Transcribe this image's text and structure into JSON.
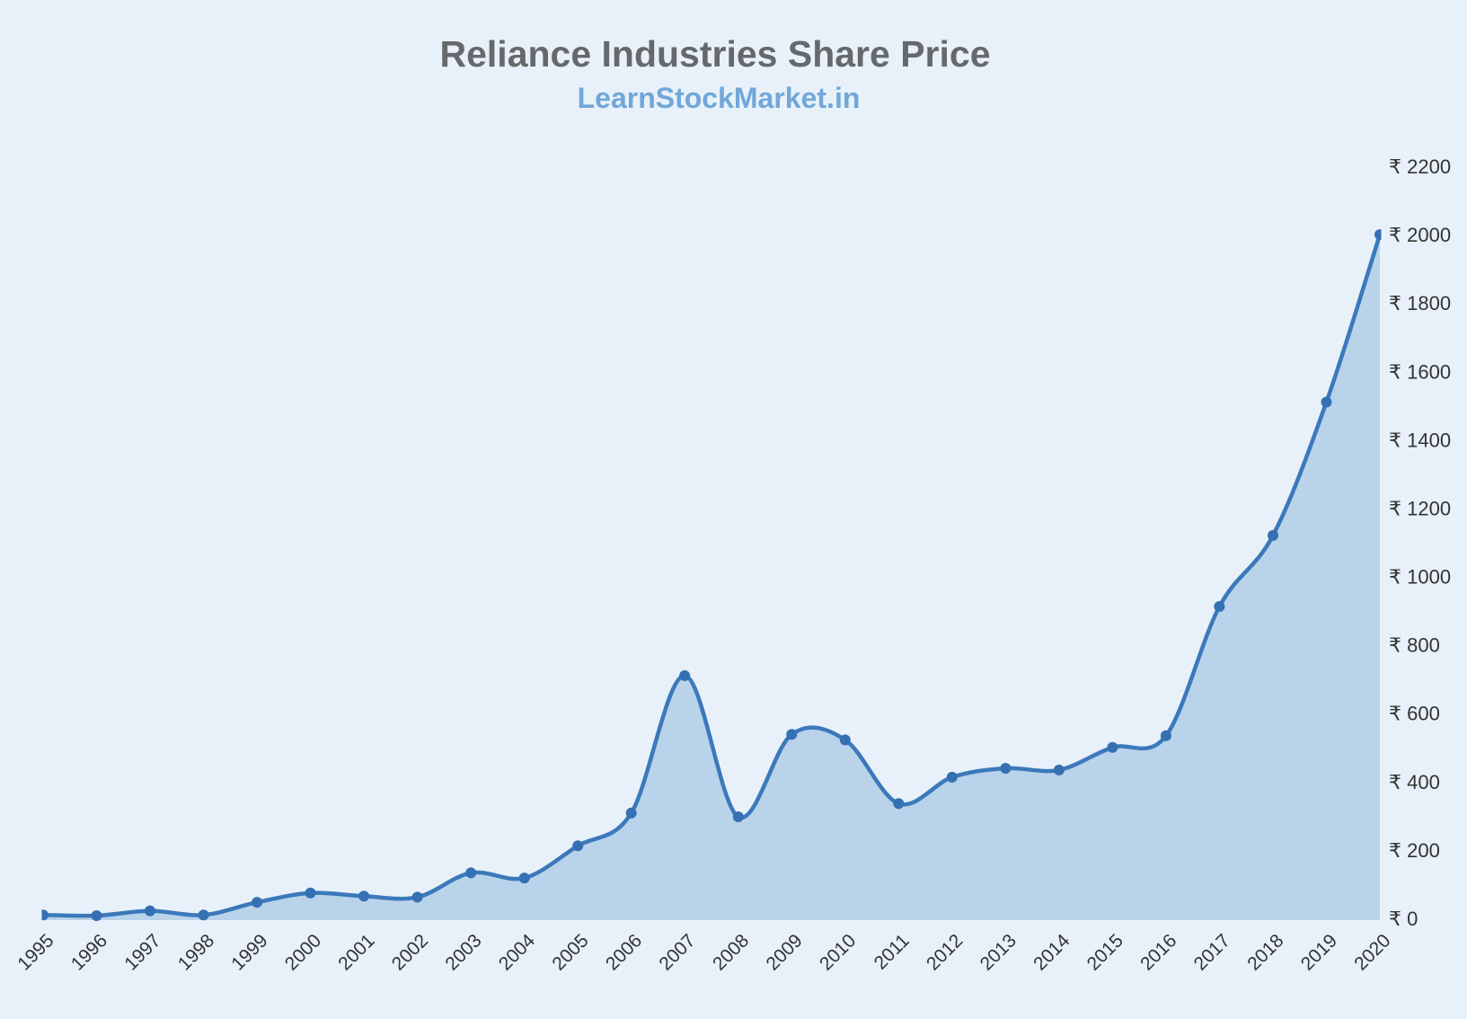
{
  "page": {
    "background": "#E8F1F9"
  },
  "chart_data": {
    "type": "area",
    "title": "Reliance Industries Share Price",
    "subtitle": "LearnStockMarket.in",
    "categories": [
      "1995",
      "1996",
      "1997",
      "1998",
      "1999",
      "2000",
      "2001",
      "2002",
      "2003",
      "2004",
      "2005",
      "2006",
      "2007",
      "2008",
      "2009",
      "2010",
      "2011",
      "2012",
      "2013",
      "2014",
      "2015",
      "2016",
      "2017",
      "2018",
      "2019",
      "2020"
    ],
    "series": [
      {
        "name": "Share Price",
        "values": [
          10,
          8,
          22,
          10,
          47,
          74,
          65,
          62,
          133,
          118,
          212,
          308,
          710,
          297,
          538,
          522,
          336,
          413,
          439,
          434,
          500,
          534,
          912,
          1120,
          1510,
          2000
        ]
      }
    ],
    "xlabel": "",
    "ylabel": "",
    "ylim": [
      0,
      2200
    ],
    "ytick_step": 200,
    "ytick_prefix": "₹ ",
    "grid": false,
    "legend": "none",
    "smooth": true,
    "marker": "circle",
    "colors": {
      "background": "#E8F1F9",
      "area_fill": "#B9D3EA",
      "line": "#3B79BB",
      "marker": "#3470B2",
      "title": "#66696C",
      "subtitle": "#71A7D9",
      "axis_label": "#333333"
    }
  }
}
